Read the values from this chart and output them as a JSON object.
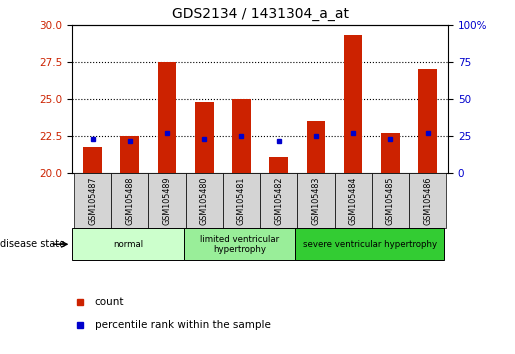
{
  "title": "GDS2134 / 1431304_a_at",
  "samples": [
    "GSM105487",
    "GSM105488",
    "GSM105489",
    "GSM105480",
    "GSM105481",
    "GSM105482",
    "GSM105483",
    "GSM105484",
    "GSM105485",
    "GSM105486"
  ],
  "counts": [
    21.8,
    22.5,
    27.5,
    24.8,
    25.0,
    21.1,
    23.5,
    29.3,
    22.7,
    27.0
  ],
  "percentiles": [
    22.3,
    22.2,
    22.7,
    22.3,
    22.5,
    22.2,
    22.5,
    22.7,
    22.3,
    22.7
  ],
  "ylim_left": [
    20,
    30
  ],
  "ylim_right": [
    0,
    100
  ],
  "yticks_left": [
    20,
    22.5,
    25,
    27.5,
    30
  ],
  "yticks_right": [
    0,
    25,
    50,
    75,
    100
  ],
  "bar_color": "#cc2200",
  "percentile_color": "#0000cc",
  "groups": [
    {
      "label": "normal",
      "indices": [
        0,
        1,
        2
      ],
      "color": "#ccffcc"
    },
    {
      "label": "limited ventricular\nhypertrophy",
      "indices": [
        3,
        4,
        5
      ],
      "color": "#99ee99"
    },
    {
      "label": "severe ventricular hypertrophy",
      "indices": [
        6,
        7,
        8,
        9
      ],
      "color": "#33cc33"
    }
  ],
  "disease_state_label": "disease state",
  "legend_count_label": "count",
  "legend_percentile_label": "percentile rank within the sample",
  "grid_color": "#000000",
  "tick_label_color_left": "#cc2200",
  "tick_label_color_right": "#0000cc",
  "bar_width": 0.5,
  "xtick_bg_color": "#d4d4d4",
  "figsize": [
    5.15,
    3.54
  ],
  "dpi": 100
}
